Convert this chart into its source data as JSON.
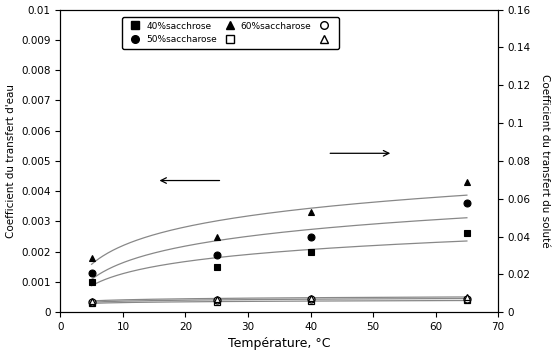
{
  "temperatures": [
    5,
    25,
    40,
    65
  ],
  "water_40": [
    0.001,
    0.0015,
    0.002,
    0.0026
  ],
  "water_50": [
    0.0013,
    0.0019,
    0.0025,
    0.0036
  ],
  "water_60": [
    0.0018,
    0.0025,
    0.0033,
    0.0043
  ],
  "solute_40": [
    0.0047,
    0.0055,
    0.0059,
    0.0062
  ],
  "solute_50": [
    0.0053,
    0.0065,
    0.0069,
    0.0072
  ],
  "solute_60": [
    0.006,
    0.0072,
    0.0075,
    0.0082
  ],
  "xlabel": "Température, °C",
  "ylabel_left": "Coefficient du transfert d'eau",
  "ylabel_right": "Coefficient du transfert du soluté",
  "xlim": [
    0,
    70
  ],
  "ylim_left": [
    0,
    0.01
  ],
  "ylim_right": [
    0,
    0.16
  ],
  "yticks_left": [
    0,
    0.001,
    0.002,
    0.003,
    0.004,
    0.005,
    0.006,
    0.007,
    0.008,
    0.009,
    0.01
  ],
  "yticks_right": [
    0,
    0.02,
    0.04,
    0.06,
    0.08,
    0.1,
    0.12,
    0.14,
    0.16
  ],
  "xticks": [
    0,
    10,
    20,
    30,
    40,
    50,
    60,
    70
  ],
  "label_40": "40%sacchrose",
  "label_50": "50%saccharose",
  "label_60": "60%saccharose",
  "linecolor": "#888888",
  "markercolor": "black",
  "markersize": 5,
  "linewidth": 0.9,
  "figsize": [
    5.56,
    3.56
  ],
  "dpi": 100
}
